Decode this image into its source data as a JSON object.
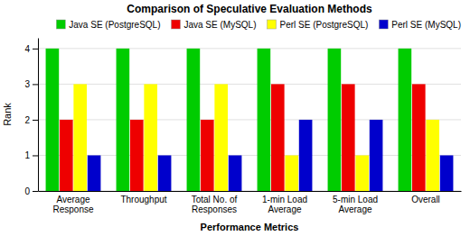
{
  "chart_data": {
    "type": "bar",
    "title": "Comparison of Speculative Evaluation Methods",
    "xlabel": "Performance Metrics",
    "ylabel": "Rank",
    "categories": [
      "Average\nResponse",
      "Throughput",
      "Total No. of\nResponses",
      "1-min Load\nAverage",
      "5-min Load\nAverage",
      "Overall"
    ],
    "series": [
      {
        "name": "Java SE (PostgreSQL)",
        "color": "#00CC00",
        "values": [
          4,
          4,
          4,
          4,
          4,
          4
        ]
      },
      {
        "name": "Java SE (MySQL)",
        "color": "#EE0000",
        "values": [
          2,
          2,
          2,
          3,
          3,
          3
        ]
      },
      {
        "name": "Perl SE (PostgreSQL)",
        "color": "#FFFF00",
        "values": [
          3,
          3,
          3,
          1,
          1,
          2
        ]
      },
      {
        "name": "Perl SE (MySQL)",
        "color": "#0000CC",
        "values": [
          1,
          1,
          1,
          2,
          2,
          1
        ]
      }
    ],
    "ylim": [
      0,
      4.3
    ],
    "yticks": [
      0,
      1,
      2,
      3,
      4
    ],
    "grid": true,
    "legend": "upper right"
  }
}
